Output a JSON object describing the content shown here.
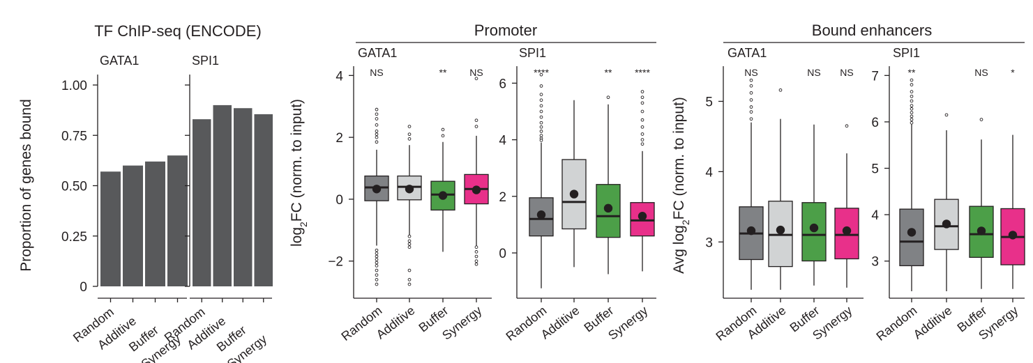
{
  "chart_data": [
    {
      "id": "tf",
      "type": "bar",
      "title": "TF ChIP-seq (ENCODE)",
      "ylabel": "Proportion of genes bound",
      "ylim": [
        0,
        1.0
      ],
      "yticks": [
        0,
        0.25,
        0.5,
        0.75,
        1.0
      ],
      "ytick_labels": [
        "0",
        "0.25",
        "0.50",
        "0.75",
        "1.00"
      ],
      "categories": [
        "Random",
        "Additive",
        "Buffer",
        "Synergy"
      ],
      "bar_color": "#58595b",
      "facets": [
        {
          "name": "GATA1",
          "values": [
            0.57,
            0.6,
            0.62,
            0.65
          ]
        },
        {
          "name": "SPI1",
          "values": [
            0.83,
            0.9,
            0.885,
            0.855
          ]
        }
      ]
    },
    {
      "id": "prom",
      "type": "box",
      "title": "Promoter",
      "ylabel": "log2FC (norm. to input)",
      "categories": [
        "Random",
        "Additive",
        "Buffer",
        "Synergy"
      ],
      "colors": [
        "#808285",
        "#d1d3d4",
        "#4c9f48",
        "#e8308a"
      ],
      "facets": [
        {
          "name": "GATA1",
          "ylim": [
            -3.2,
            4.3
          ],
          "yticks": [
            -2,
            0,
            2,
            4
          ],
          "ytick_labels": [
            "−2",
            "0",
            "2",
            "4"
          ],
          "significance": [
            "NS",
            "",
            "**",
            "NS"
          ],
          "boxes": [
            {
              "q1": -0.05,
              "median": 0.38,
              "q3": 0.75,
              "low": -1.5,
              "high": 1.6,
              "mean": 0.33,
              "outliers": [
                2.9,
                2.75,
                2.6,
                2.4,
                2.2,
                2.1,
                2.0,
                1.85,
                -1.65,
                -1.75,
                -1.85,
                -1.95,
                -2.05,
                -2.15,
                -2.3,
                -2.45,
                -2.6,
                -2.75
              ]
            },
            {
              "q1": -0.02,
              "median": 0.4,
              "q3": 0.75,
              "low": -1.15,
              "high": 1.75,
              "mean": 0.33,
              "outliers": [
                2.35,
                2.1,
                1.95,
                -1.2,
                -1.35,
                -1.45,
                -1.55,
                -2.3,
                -2.6,
                -2.75
              ]
            },
            {
              "q1": -0.35,
              "median": 0.15,
              "q3": 0.58,
              "low": -1.7,
              "high": 1.85,
              "mean": 0.12,
              "outliers": [
                2.25,
                2.05
              ]
            },
            {
              "q1": -0.15,
              "median": 0.33,
              "q3": 0.8,
              "low": -1.5,
              "high": 2.05,
              "mean": 0.3,
              "outliers": [
                3.9,
                2.55,
                2.35,
                -1.55,
                -1.7,
                -1.85,
                -2.0,
                -2.1
              ]
            }
          ]
        },
        {
          "name": "SPI1",
          "ylim": [
            -1.6,
            6.6
          ],
          "yticks": [
            0,
            2,
            4,
            6
          ],
          "ytick_labels": [
            "0",
            "2",
            "4",
            "6"
          ],
          "significance": [
            "****",
            "",
            "**",
            "****"
          ],
          "boxes": [
            {
              "q1": 0.6,
              "median": 1.2,
              "q3": 1.95,
              "low": -1.25,
              "high": 3.9,
              "mean": 1.35,
              "outliers": [
                6.3,
                5.9,
                5.6,
                5.4,
                5.2,
                5.0,
                4.8,
                4.6,
                4.45,
                4.3,
                4.15,
                4.05,
                3.98
              ]
            },
            {
              "q1": 0.85,
              "median": 1.8,
              "q3": 3.3,
              "low": -0.5,
              "high": 5.4,
              "mean": 2.08,
              "outliers": []
            },
            {
              "q1": 0.55,
              "median": 1.3,
              "q3": 2.42,
              "low": -0.75,
              "high": 5.25,
              "mean": 1.58,
              "outliers": [
                5.5
              ]
            },
            {
              "q1": 0.6,
              "median": 1.15,
              "q3": 1.78,
              "low": -0.65,
              "high": 3.6,
              "mean": 1.3,
              "outliers": [
                5.7,
                5.5,
                5.3,
                5.0,
                4.7,
                4.45,
                4.2,
                4.0,
                3.85
              ]
            }
          ]
        }
      ]
    },
    {
      "id": "enh",
      "type": "box",
      "title": "Bound enhancers",
      "ylabel": "Avg log2FC (norm. to input)",
      "categories": [
        "Random",
        "Additive",
        "Buffer",
        "Synergy"
      ],
      "colors": [
        "#808285",
        "#d1d3d4",
        "#4c9f48",
        "#e8308a"
      ],
      "facets": [
        {
          "name": "GATA1",
          "ylim": [
            2.2,
            5.5
          ],
          "yticks": [
            3,
            4,
            5
          ],
          "ytick_labels": [
            "3",
            "4",
            "5"
          ],
          "significance": [
            "NS",
            "",
            "NS",
            "NS"
          ],
          "boxes": [
            {
              "q1": 2.75,
              "median": 3.12,
              "q3": 3.5,
              "low": 2.32,
              "high": 4.7,
              "mean": 3.16,
              "outliers": [
                5.3,
                5.22,
                5.12,
                5.02,
                4.92,
                4.85,
                4.75
              ]
            },
            {
              "q1": 2.65,
              "median": 3.1,
              "q3": 3.58,
              "low": 2.32,
              "high": 4.75,
              "mean": 3.17,
              "outliers": [
                5.16
              ]
            },
            {
              "q1": 2.73,
              "median": 3.1,
              "q3": 3.56,
              "low": 2.38,
              "high": 4.67,
              "mean": 3.2,
              "outliers": []
            },
            {
              "q1": 2.76,
              "median": 3.1,
              "q3": 3.48,
              "low": 2.35,
              "high": 4.26,
              "mean": 3.16,
              "outliers": [
                4.65
              ]
            }
          ]
        },
        {
          "name": "SPI1",
          "ylim": [
            2.2,
            7.2
          ],
          "yticks": [
            3,
            4,
            5,
            6,
            7
          ],
          "ytick_labels": [
            "3",
            "4",
            "5",
            "6",
            "7"
          ],
          "significance": [
            "**",
            "",
            "NS",
            "*"
          ],
          "boxes": [
            {
              "q1": 2.9,
              "median": 3.42,
              "q3": 4.12,
              "low": 2.35,
              "high": 5.95,
              "mean": 3.62,
              "outliers": [
                6.9,
                6.8,
                6.65,
                6.55,
                6.45,
                6.35,
                6.28,
                6.2,
                6.12,
                6.05,
                5.98
              ]
            },
            {
              "q1": 3.25,
              "median": 3.75,
              "q3": 4.33,
              "low": 2.35,
              "high": 5.82,
              "mean": 3.8,
              "outliers": [
                6.15
              ]
            },
            {
              "q1": 3.08,
              "median": 3.58,
              "q3": 4.18,
              "low": 2.4,
              "high": 5.62,
              "mean": 3.65,
              "outliers": [
                6.05
              ]
            },
            {
              "q1": 2.92,
              "median": 3.52,
              "q3": 4.13,
              "low": 2.4,
              "high": 5.72,
              "mean": 3.56,
              "outliers": []
            }
          ]
        }
      ]
    }
  ]
}
